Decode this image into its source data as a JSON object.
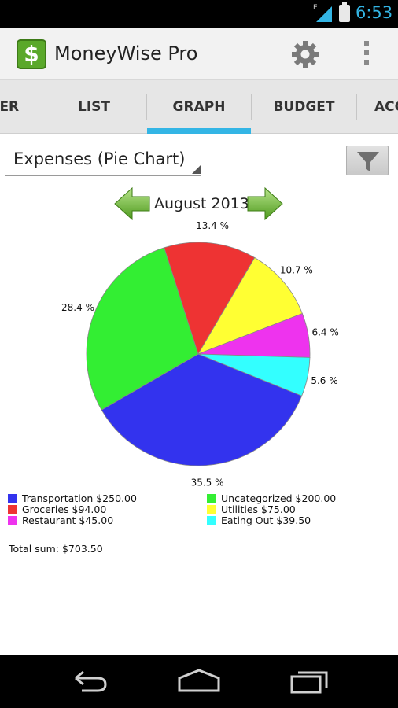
{
  "status_bar": {
    "network_label": "E",
    "time": "6:53",
    "icons": [
      "signal-icon",
      "battery-icon"
    ]
  },
  "app_bar": {
    "title": "MoneyWise Pro",
    "app_icon_glyph": "$",
    "icons": [
      "settings-gear-icon",
      "overflow-menu-icon"
    ]
  },
  "tabs": [
    {
      "label": "TER",
      "selected": false
    },
    {
      "label": "LIST",
      "selected": false
    },
    {
      "label": "GRAPH",
      "selected": true
    },
    {
      "label": "BUDGET",
      "selected": false
    },
    {
      "label": "ACC",
      "selected": false
    }
  ],
  "graph_selector": {
    "value": "Expenses (Pie Chart)",
    "filter_icon": "funnel-icon"
  },
  "period": {
    "label": "August 2013",
    "prev_icon": "arrow-left-icon",
    "next_icon": "arrow-right-icon"
  },
  "chart_data": {
    "type": "pie",
    "categories": [
      "Transportation",
      "Uncategorized",
      "Groceries",
      "Utilities",
      "Restaurant",
      "Eating Out"
    ],
    "values": [
      250.0,
      200.0,
      94.0,
      75.0,
      45.0,
      39.5
    ],
    "percent_labels": [
      "35.5 %",
      "28.4 %",
      "13.4 %",
      "10.7 %",
      "6.4 %",
      "5.6 %"
    ],
    "amount_labels": [
      "$250.00",
      "$200.00",
      "$94.00",
      "$75.00",
      "$45.00",
      "$39.50"
    ],
    "colors": [
      "#3333ee",
      "#33ee33",
      "#ee3333",
      "#ffff33",
      "#ee33ee",
      "#33ffff"
    ],
    "legend_position": "bottom"
  },
  "total": {
    "label": "Total sum: $703.50"
  },
  "nav_bar": {
    "icons": [
      "back-icon",
      "home-icon",
      "recent-apps-icon"
    ]
  },
  "theme": {
    "accent": "#33b5e5",
    "action_bar_bg": "#f2f2f2",
    "tab_bg": "#e6e6e6"
  }
}
